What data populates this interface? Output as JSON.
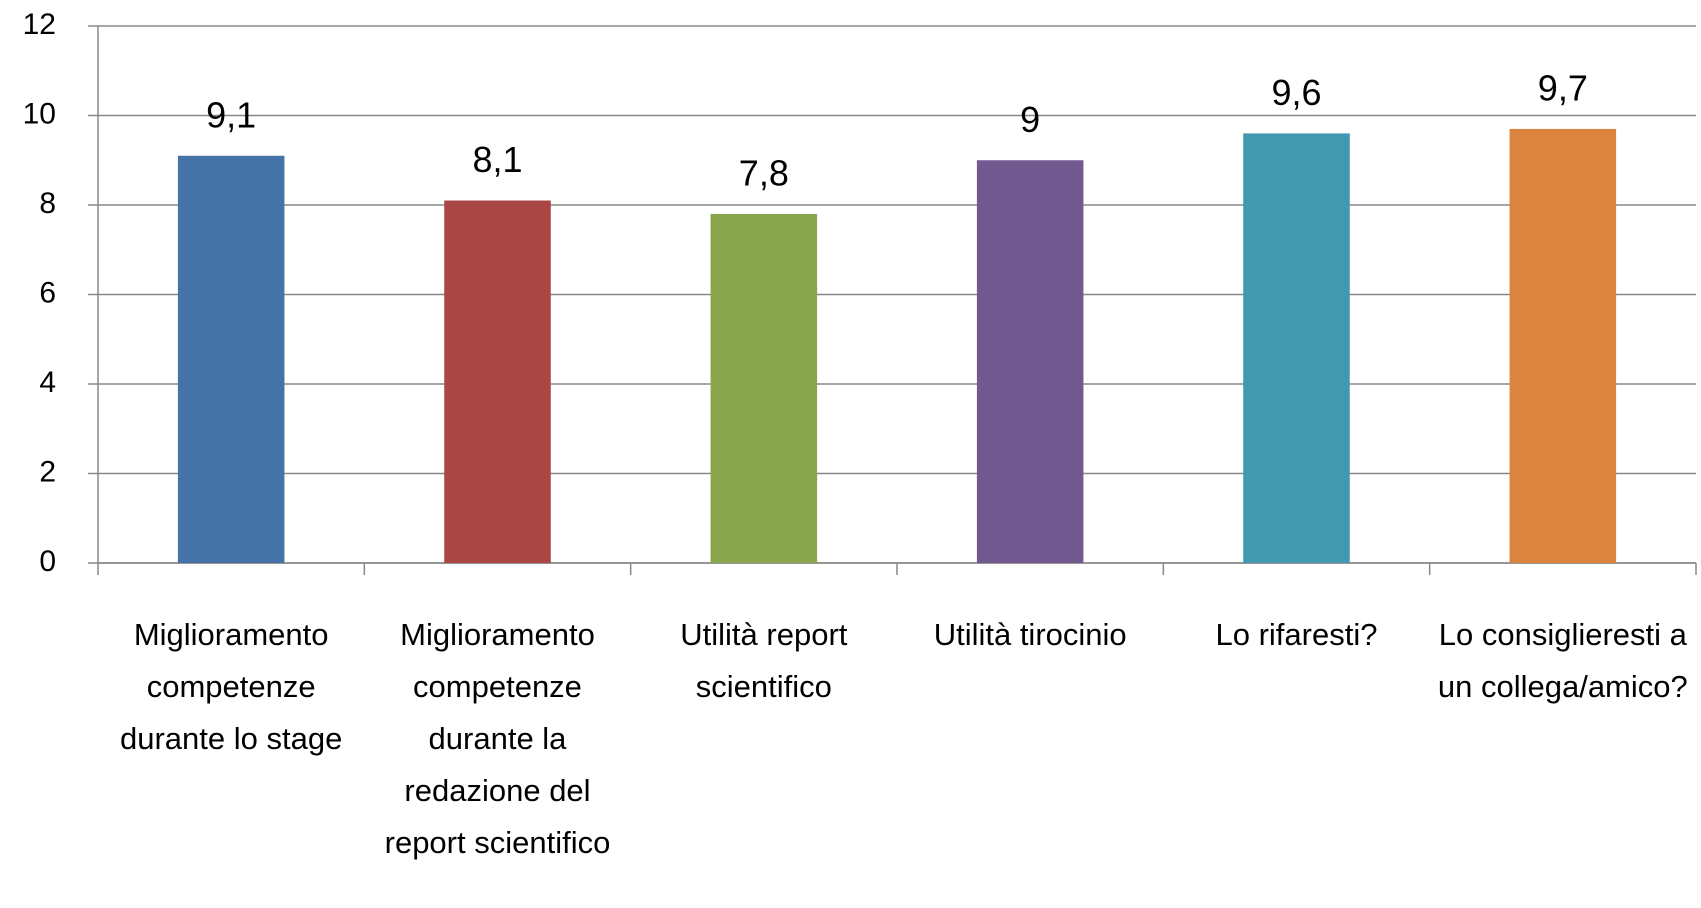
{
  "chart_data": {
    "type": "bar",
    "categories": [
      "Miglioramento competenze durante lo stage",
      "Miglioramento competenze durante la redazione del report scientifico",
      "Utilità report scientifico",
      "Utilità tirocinio",
      "Lo rifaresti?",
      "Lo consiglieresti a un collega/amico?"
    ],
    "values": [
      9.1,
      8.1,
      7.8,
      9,
      9.6,
      9.7
    ],
    "value_labels": [
      "9,1",
      "8,1",
      "7,8",
      "9",
      "9,6",
      "9,7"
    ],
    "colors": [
      "#4572a7",
      "#aa4643",
      "#89a54e",
      "#71588f",
      "#4198af",
      "#db843d"
    ],
    "ylim": [
      0,
      12
    ],
    "yticks": [
      0,
      2,
      4,
      6,
      8,
      10,
      12
    ],
    "grid": true
  }
}
